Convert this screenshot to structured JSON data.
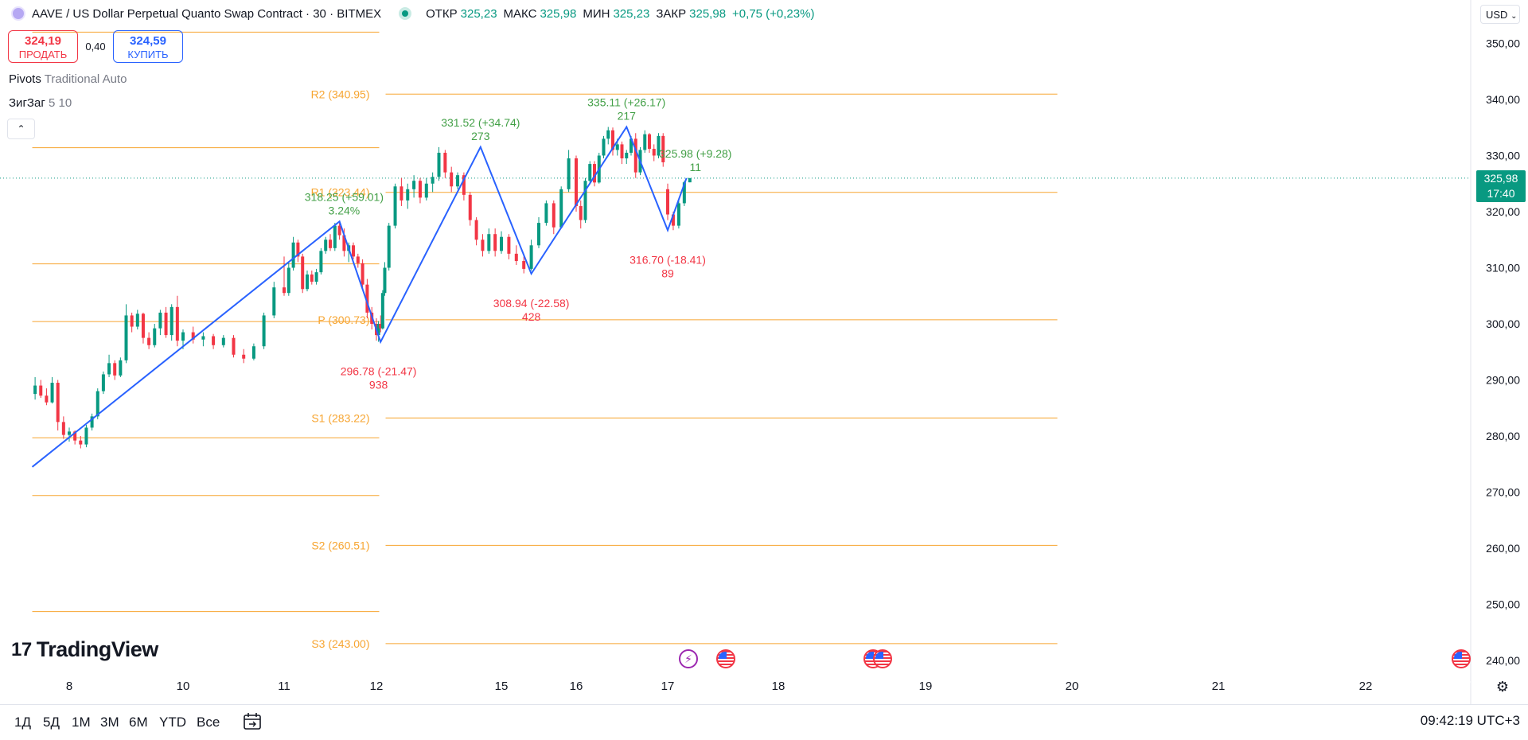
{
  "header": {
    "title": "AAVE / US Dollar Perpetual Quanto Swap Contract · 30 · BITMEX",
    "ohlc": [
      {
        "label": "ОТКР",
        "value": "325,23"
      },
      {
        "label": "МАКС",
        "value": "325,98"
      },
      {
        "label": "МИН",
        "value": "325,23"
      },
      {
        "label": "ЗАКР",
        "value": "325,98"
      }
    ],
    "change": "+0,75 (+0,23%)",
    "currency": "USD"
  },
  "trade": {
    "sell_price": "324,19",
    "sell_label": "ПРОДАТЬ",
    "spread": "0,40",
    "buy_price": "324,59",
    "buy_label": "КУПИТЬ"
  },
  "legend": {
    "pivots_name": "Pivots",
    "pivots_params": "Traditional Auto",
    "zigzag_name": "ЗигЗаг",
    "zigzag_params": "5 10"
  },
  "last_price": {
    "price": "325,98",
    "countdown": "17:40"
  },
  "logo": {
    "mark": "17",
    "text": "TradingView"
  },
  "bottom": {
    "ranges": [
      "1Д",
      "5Д",
      "1М",
      "3М",
      "6М",
      "YTD",
      "Все"
    ],
    "clock": "09:42:19 UTC+3"
  },
  "colors": {
    "up": "#089981",
    "down": "#f23645",
    "pivot": "#f7a531",
    "zigzag": "#2962ff",
    "last": "#089981"
  },
  "chart_data": {
    "type": "candlestick",
    "y_ticks": [
      240,
      250,
      260,
      270,
      280,
      290,
      300,
      310,
      320,
      330,
      340,
      350
    ],
    "y_tick_labels": [
      "240,00",
      "250,00",
      "260,00",
      "270,00",
      "280,00",
      "290,00",
      "300,00",
      "310,00",
      "320,00",
      "330,00",
      "340,00",
      "350,00"
    ],
    "ylim": [
      237.5,
      355
    ],
    "x_ticks": [
      {
        "label": "8",
        "day": 8
      },
      {
        "label": "10",
        "day": 10
      },
      {
        "label": "11",
        "day": 11
      },
      {
        "label": "12",
        "day": 12
      },
      {
        "label": "15",
        "day": 15
      },
      {
        "label": "16",
        "day": 16
      },
      {
        "label": "17",
        "day": 17
      },
      {
        "label": "18",
        "day": 18
      },
      {
        "label": "19",
        "day": 19
      },
      {
        "label": "20",
        "day": 20
      },
      {
        "label": "21",
        "day": 21
      },
      {
        "label": "22",
        "day": 22
      }
    ],
    "last_price": 325.98,
    "pivot_sets": [
      {
        "from_day": 7.35,
        "to_day": 12.22,
        "levels": [
          248.7,
          269.4,
          279.7,
          300.4,
          310.7,
          331.4,
          352.0
        ]
      },
      {
        "from_day": 12.22,
        "to_day": 19.9,
        "levels": [
          {
            "name": "S3",
            "value": 243.0,
            "label": "S3 (243.00)"
          },
          {
            "name": "S2",
            "value": 260.51,
            "label": "S2 (260.51)"
          },
          {
            "name": "S1",
            "value": 283.22,
            "label": "S1 (283.22)"
          },
          {
            "name": "P",
            "value": 300.73,
            "label": "P (300.73)"
          },
          {
            "name": "R1",
            "value": 323.44,
            "label": "R1 (323.44)"
          },
          {
            "name": "R2",
            "value": 340.95,
            "label": "R2 (340.95)"
          }
        ]
      }
    ],
    "zigzag": [
      {
        "day": 7.35,
        "price": 274.5
      },
      {
        "day": 11.6,
        "price": 318.25
      },
      {
        "day": 12.1,
        "price": 296.78
      },
      {
        "day": 14.5,
        "price": 331.52
      },
      {
        "day": 15.4,
        "price": 308.94
      },
      {
        "day": 16.55,
        "price": 335.11
      },
      {
        "day": 17.0,
        "price": 316.7
      },
      {
        "day": 17.17,
        "price": 325.98
      }
    ],
    "zigzag_labels": [
      {
        "day": 11.65,
        "price": 318.25,
        "text": "318.25 (+59.01)",
        "sub": "3.24%",
        "dir": "up"
      },
      {
        "day": 12.05,
        "price": 296.78,
        "text": "296.78 (-21.47)",
        "sub": "938",
        "dir": "down"
      },
      {
        "day": 14.5,
        "price": 331.52,
        "text": "331.52 (+34.74)",
        "sub": "273",
        "dir": "up"
      },
      {
        "day": 15.4,
        "price": 308.94,
        "text": "308.94 (-22.58)",
        "sub": "428",
        "dir": "down"
      },
      {
        "day": 16.55,
        "price": 335.11,
        "text": "335.11 (+26.17)",
        "sub": "217",
        "dir": "up"
      },
      {
        "day": 17.0,
        "price": 316.7,
        "text": "316.70 (-18.41)",
        "sub": "89",
        "dir": "down"
      },
      {
        "day": 17.25,
        "price": 325.98,
        "text": "325.98 (+9.28)",
        "sub": "11",
        "dir": "up"
      }
    ],
    "candles": [
      {
        "day": 7.4,
        "o": 287.5,
        "h": 290.5,
        "l": 286.5,
        "c": 289.0
      },
      {
        "day": 7.5,
        "o": 289.0,
        "h": 290.0,
        "l": 286.8,
        "c": 287.2
      },
      {
        "day": 7.6,
        "o": 287.2,
        "h": 288.5,
        "l": 285.5,
        "c": 286.0
      },
      {
        "day": 7.7,
        "o": 286.0,
        "h": 290.5,
        "l": 285.8,
        "c": 289.5
      },
      {
        "day": 7.8,
        "o": 289.5,
        "h": 290.0,
        "l": 281.0,
        "c": 282.5
      },
      {
        "day": 7.9,
        "o": 282.5,
        "h": 283.5,
        "l": 279.5,
        "c": 280.2
      },
      {
        "day": 8.0,
        "o": 280.2,
        "h": 281.5,
        "l": 279.0,
        "c": 280.8
      },
      {
        "day": 8.1,
        "o": 280.8,
        "h": 281.0,
        "l": 278.5,
        "c": 279.2
      },
      {
        "day": 8.2,
        "o": 279.2,
        "h": 280.0,
        "l": 277.8,
        "c": 278.5
      },
      {
        "day": 8.3,
        "o": 278.5,
        "h": 282.0,
        "l": 278.0,
        "c": 281.5
      },
      {
        "day": 8.4,
        "o": 281.5,
        "h": 284.0,
        "l": 281.0,
        "c": 283.5
      },
      {
        "day": 8.5,
        "o": 283.5,
        "h": 288.5,
        "l": 283.0,
        "c": 288.0
      },
      {
        "day": 8.6,
        "o": 288.0,
        "h": 291.5,
        "l": 287.5,
        "c": 291.0
      },
      {
        "day": 8.7,
        "o": 291.0,
        "h": 294.5,
        "l": 290.5,
        "c": 293.0
      },
      {
        "day": 8.8,
        "o": 293.0,
        "h": 293.5,
        "l": 290.0,
        "c": 290.8
      },
      {
        "day": 8.9,
        "o": 290.8,
        "h": 294.0,
        "l": 290.5,
        "c": 293.5
      },
      {
        "day": 9.0,
        "o": 293.5,
        "h": 303.5,
        "l": 293.0,
        "c": 301.5
      },
      {
        "day": 9.1,
        "o": 301.5,
        "h": 302.0,
        "l": 298.5,
        "c": 299.5
      },
      {
        "day": 9.2,
        "o": 299.5,
        "h": 302.5,
        "l": 299.0,
        "c": 301.8
      },
      {
        "day": 9.3,
        "o": 301.8,
        "h": 302.0,
        "l": 296.5,
        "c": 297.5
      },
      {
        "day": 9.4,
        "o": 297.5,
        "h": 298.5,
        "l": 295.5,
        "c": 296.2
      },
      {
        "day": 9.5,
        "o": 296.2,
        "h": 300.0,
        "l": 295.8,
        "c": 299.2
      },
      {
        "day": 9.6,
        "o": 299.2,
        "h": 302.5,
        "l": 298.0,
        "c": 302.0
      },
      {
        "day": 9.7,
        "o": 302.0,
        "h": 303.0,
        "l": 297.5,
        "c": 298.0
      },
      {
        "day": 9.8,
        "o": 298.0,
        "h": 303.5,
        "l": 297.0,
        "c": 303.0
      },
      {
        "day": 9.9,
        "o": 303.0,
        "h": 305.0,
        "l": 296.0,
        "c": 297.0
      },
      {
        "day": 10.0,
        "o": 297.0,
        "h": 299.0,
        "l": 295.5,
        "c": 298.5
      },
      {
        "day": 10.1,
        "o": 298.5,
        "h": 299.5,
        "l": 296.5,
        "c": 297.2
      },
      {
        "day": 10.2,
        "o": 297.2,
        "h": 298.5,
        "l": 296.0,
        "c": 297.8
      },
      {
        "day": 10.3,
        "o": 297.8,
        "h": 298.2,
        "l": 295.5,
        "c": 296.2
      },
      {
        "day": 10.4,
        "o": 296.2,
        "h": 298.0,
        "l": 295.8,
        "c": 297.5
      },
      {
        "day": 10.5,
        "o": 297.5,
        "h": 298.0,
        "l": 294.0,
        "c": 294.5
      },
      {
        "day": 10.6,
        "o": 294.5,
        "h": 295.5,
        "l": 293.0,
        "c": 293.8
      },
      {
        "day": 10.7,
        "o": 293.8,
        "h": 296.5,
        "l": 293.5,
        "c": 296.0
      },
      {
        "day": 10.8,
        "o": 296.0,
        "h": 302.0,
        "l": 295.5,
        "c": 301.5
      },
      {
        "day": 10.9,
        "o": 301.5,
        "h": 307.5,
        "l": 301.0,
        "c": 306.5
      },
      {
        "day": 11.0,
        "o": 306.5,
        "h": 312.0,
        "l": 305.0,
        "c": 305.5
      },
      {
        "day": 11.05,
        "o": 305.5,
        "h": 311.0,
        "l": 305.0,
        "c": 310.0
      },
      {
        "day": 11.1,
        "o": 310.0,
        "h": 315.5,
        "l": 309.5,
        "c": 314.5
      },
      {
        "day": 11.15,
        "o": 314.5,
        "h": 315.0,
        "l": 311.0,
        "c": 312.0
      },
      {
        "day": 11.2,
        "o": 312.0,
        "h": 312.5,
        "l": 305.5,
        "c": 306.2
      },
      {
        "day": 11.25,
        "o": 306.2,
        "h": 309.5,
        "l": 305.8,
        "c": 308.8
      },
      {
        "day": 11.3,
        "o": 308.8,
        "h": 309.5,
        "l": 307.0,
        "c": 307.5
      },
      {
        "day": 11.35,
        "o": 307.5,
        "h": 309.8,
        "l": 307.0,
        "c": 309.2
      },
      {
        "day": 11.4,
        "o": 309.2,
        "h": 313.5,
        "l": 308.8,
        "c": 313.0
      },
      {
        "day": 11.45,
        "o": 313.0,
        "h": 315.5,
        "l": 312.5,
        "c": 315.0
      },
      {
        "day": 11.5,
        "o": 315.0,
        "h": 316.0,
        "l": 313.0,
        "c": 313.5
      },
      {
        "day": 11.55,
        "o": 313.5,
        "h": 318.0,
        "l": 313.0,
        "c": 317.5
      },
      {
        "day": 11.6,
        "o": 317.5,
        "h": 318.3,
        "l": 315.0,
        "c": 315.8
      },
      {
        "day": 11.65,
        "o": 315.8,
        "h": 317.0,
        "l": 312.0,
        "c": 313.0
      },
      {
        "day": 11.7,
        "o": 313.0,
        "h": 314.5,
        "l": 311.0,
        "c": 314.0
      },
      {
        "day": 11.75,
        "o": 314.0,
        "h": 314.5,
        "l": 311.5,
        "c": 312.0
      },
      {
        "day": 11.8,
        "o": 312.0,
        "h": 312.5,
        "l": 310.0,
        "c": 310.8
      },
      {
        "day": 11.85,
        "o": 310.8,
        "h": 311.5,
        "l": 306.0,
        "c": 307.0
      },
      {
        "day": 11.9,
        "o": 307.0,
        "h": 308.0,
        "l": 301.0,
        "c": 302.0
      },
      {
        "day": 11.95,
        "o": 302.0,
        "h": 303.0,
        "l": 299.0,
        "c": 300.0
      },
      {
        "day": 12.0,
        "o": 300.0,
        "h": 301.0,
        "l": 297.0,
        "c": 298.0
      },
      {
        "day": 12.05,
        "o": 298.0,
        "h": 300.5,
        "l": 296.8,
        "c": 300.0
      },
      {
        "day": 12.1,
        "o": 300.0,
        "h": 301.5,
        "l": 298.5,
        "c": 299.2
      },
      {
        "day": 12.15,
        "o": 299.2,
        "h": 306.0,
        "l": 299.0,
        "c": 305.5
      },
      {
        "day": 12.2,
        "o": 305.5,
        "h": 311.0,
        "l": 305.0,
        "c": 310.0
      },
      {
        "day": 12.3,
        "o": 310.0,
        "h": 318.0,
        "l": 309.5,
        "c": 317.5
      },
      {
        "day": 12.45,
        "o": 317.5,
        "h": 325.0,
        "l": 317.0,
        "c": 324.5
      },
      {
        "day": 12.6,
        "o": 324.5,
        "h": 326.0,
        "l": 321.0,
        "c": 322.0
      },
      {
        "day": 12.75,
        "o": 322.0,
        "h": 325.0,
        "l": 320.5,
        "c": 324.0
      },
      {
        "day": 12.9,
        "o": 324.0,
        "h": 326.5,
        "l": 322.5,
        "c": 325.5
      },
      {
        "day": 13.05,
        "o": 325.5,
        "h": 326.0,
        "l": 321.5,
        "c": 322.5
      },
      {
        "day": 13.2,
        "o": 322.5,
        "h": 326.0,
        "l": 322.0,
        "c": 325.0
      },
      {
        "day": 13.35,
        "o": 325.0,
        "h": 327.0,
        "l": 323.5,
        "c": 326.2
      },
      {
        "day": 13.5,
        "o": 326.2,
        "h": 331.5,
        "l": 325.5,
        "c": 330.5
      },
      {
        "day": 13.65,
        "o": 330.5,
        "h": 331.0,
        "l": 326.0,
        "c": 327.0
      },
      {
        "day": 13.8,
        "o": 327.0,
        "h": 328.0,
        "l": 323.5,
        "c": 324.5
      },
      {
        "day": 13.95,
        "o": 324.5,
        "h": 327.0,
        "l": 324.0,
        "c": 326.5
      },
      {
        "day": 14.1,
        "o": 326.5,
        "h": 327.0,
        "l": 322.0,
        "c": 323.0
      },
      {
        "day": 14.25,
        "o": 323.0,
        "h": 323.5,
        "l": 317.5,
        "c": 318.5
      },
      {
        "day": 14.4,
        "o": 318.5,
        "h": 319.0,
        "l": 314.0,
        "c": 315.0
      },
      {
        "day": 14.55,
        "o": 315.0,
        "h": 316.0,
        "l": 312.0,
        "c": 313.0
      },
      {
        "day": 14.7,
        "o": 313.0,
        "h": 317.0,
        "l": 312.5,
        "c": 316.0
      },
      {
        "day": 14.85,
        "o": 316.0,
        "h": 317.0,
        "l": 312.0,
        "c": 313.0
      },
      {
        "day": 15.0,
        "o": 313.0,
        "h": 316.5,
        "l": 312.5,
        "c": 315.5
      },
      {
        "day": 15.1,
        "o": 315.5,
        "h": 316.0,
        "l": 311.5,
        "c": 312.5
      },
      {
        "day": 15.2,
        "o": 312.5,
        "h": 314.0,
        "l": 310.5,
        "c": 311.2
      },
      {
        "day": 15.3,
        "o": 311.2,
        "h": 312.0,
        "l": 309.0,
        "c": 309.8
      },
      {
        "day": 15.4,
        "o": 309.8,
        "h": 315.0,
        "l": 309.5,
        "c": 314.0
      },
      {
        "day": 15.5,
        "o": 314.0,
        "h": 319.0,
        "l": 313.5,
        "c": 318.0
      },
      {
        "day": 15.6,
        "o": 318.0,
        "h": 322.0,
        "l": 317.5,
        "c": 321.5
      },
      {
        "day": 15.7,
        "o": 321.5,
        "h": 322.0,
        "l": 316.0,
        "c": 317.2
      },
      {
        "day": 15.8,
        "o": 317.2,
        "h": 324.5,
        "l": 317.0,
        "c": 324.0
      },
      {
        "day": 15.9,
        "o": 324.0,
        "h": 331.0,
        "l": 323.5,
        "c": 329.5
      },
      {
        "day": 16.0,
        "o": 329.5,
        "h": 330.0,
        "l": 320.0,
        "c": 321.0
      },
      {
        "day": 16.05,
        "o": 321.0,
        "h": 322.0,
        "l": 317.0,
        "c": 318.5
      },
      {
        "day": 16.1,
        "o": 318.5,
        "h": 326.0,
        "l": 318.0,
        "c": 325.5
      },
      {
        "day": 16.15,
        "o": 325.5,
        "h": 329.0,
        "l": 325.0,
        "c": 328.5
      },
      {
        "day": 16.2,
        "o": 328.5,
        "h": 329.0,
        "l": 324.5,
        "c": 325.2
      },
      {
        "day": 16.25,
        "o": 325.2,
        "h": 330.5,
        "l": 325.0,
        "c": 330.0
      },
      {
        "day": 16.3,
        "o": 330.0,
        "h": 333.5,
        "l": 329.5,
        "c": 333.0
      },
      {
        "day": 16.35,
        "o": 333.0,
        "h": 335.1,
        "l": 332.0,
        "c": 334.5
      },
      {
        "day": 16.4,
        "o": 334.5,
        "h": 335.0,
        "l": 330.0,
        "c": 331.0
      },
      {
        "day": 16.45,
        "o": 331.0,
        "h": 333.0,
        "l": 330.0,
        "c": 332.0
      },
      {
        "day": 16.5,
        "o": 332.0,
        "h": 332.5,
        "l": 328.5,
        "c": 329.5
      },
      {
        "day": 16.55,
        "o": 329.5,
        "h": 331.0,
        "l": 328.5,
        "c": 330.5
      },
      {
        "day": 16.6,
        "o": 330.5,
        "h": 333.5,
        "l": 330.0,
        "c": 333.0
      },
      {
        "day": 16.65,
        "o": 333.0,
        "h": 334.0,
        "l": 326.0,
        "c": 327.0
      },
      {
        "day": 16.7,
        "o": 327.0,
        "h": 331.5,
        "l": 326.5,
        "c": 331.0
      },
      {
        "day": 16.75,
        "o": 331.0,
        "h": 334.5,
        "l": 330.5,
        "c": 333.8
      },
      {
        "day": 16.8,
        "o": 333.8,
        "h": 334.0,
        "l": 330.5,
        "c": 331.2
      },
      {
        "day": 16.85,
        "o": 331.2,
        "h": 332.0,
        "l": 329.0,
        "c": 330.0
      },
      {
        "day": 16.9,
        "o": 330.0,
        "h": 334.0,
        "l": 329.5,
        "c": 333.5
      },
      {
        "day": 16.95,
        "o": 333.5,
        "h": 334.0,
        "l": 328.0,
        "c": 328.8
      },
      {
        "day": 17.0,
        "o": 324.0,
        "h": 325.0,
        "l": 318.5,
        "c": 319.5
      },
      {
        "day": 17.05,
        "o": 319.5,
        "h": 320.0,
        "l": 316.7,
        "c": 317.5
      },
      {
        "day": 17.1,
        "o": 317.5,
        "h": 322.0,
        "l": 317.0,
        "c": 321.5
      },
      {
        "day": 17.15,
        "o": 321.5,
        "h": 325.5,
        "l": 321.0,
        "c": 325.23
      },
      {
        "day": 17.2,
        "o": 325.23,
        "h": 325.98,
        "l": 325.23,
        "c": 325.98
      }
    ]
  }
}
